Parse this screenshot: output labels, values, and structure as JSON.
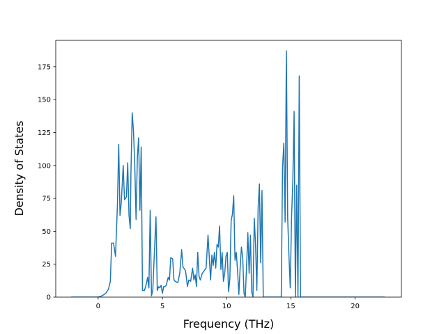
{
  "chart_data": {
    "type": "line",
    "title": "",
    "xlabel": "Frequency (THz)",
    "ylabel": "Density of States",
    "xlim": [
      -3.3,
      23.6
    ],
    "ylim": [
      0,
      195
    ],
    "xticks": [
      0,
      5,
      10,
      15,
      20
    ],
    "yticks": [
      0,
      25,
      50,
      75,
      100,
      125,
      150,
      175
    ],
    "grid": false,
    "legend": "none",
    "series": [
      {
        "color": "#1f77b4",
        "points": [
          [
            -2.1,
            0
          ],
          [
            -1.0,
            0
          ],
          [
            0.0,
            0
          ],
          [
            0.3,
            1
          ],
          [
            0.6,
            3
          ],
          [
            0.8,
            6
          ],
          [
            0.95,
            12
          ],
          [
            1.05,
            41
          ],
          [
            1.2,
            41
          ],
          [
            1.35,
            31
          ],
          [
            1.5,
            70
          ],
          [
            1.6,
            116
          ],
          [
            1.7,
            62
          ],
          [
            1.8,
            72
          ],
          [
            1.95,
            100
          ],
          [
            2.05,
            74
          ],
          [
            2.2,
            76
          ],
          [
            2.3,
            102
          ],
          [
            2.4,
            62
          ],
          [
            2.5,
            52
          ],
          [
            2.55,
            93
          ],
          [
            2.65,
            140
          ],
          [
            2.75,
            126
          ],
          [
            2.85,
            100
          ],
          [
            2.95,
            59
          ],
          [
            3.05,
            106
          ],
          [
            3.15,
            121
          ],
          [
            3.25,
            66
          ],
          [
            3.35,
            114
          ],
          [
            3.45,
            5
          ],
          [
            3.6,
            5
          ],
          [
            3.75,
            10
          ],
          [
            3.85,
            15
          ],
          [
            3.95,
            7
          ],
          [
            4.05,
            66
          ],
          [
            4.15,
            1
          ],
          [
            4.25,
            5
          ],
          [
            4.35,
            28
          ],
          [
            4.5,
            61
          ],
          [
            4.6,
            5
          ],
          [
            4.7,
            8
          ],
          [
            4.8,
            7
          ],
          [
            4.9,
            9
          ],
          [
            5.0,
            3
          ],
          [
            5.1,
            8
          ],
          [
            5.2,
            8
          ],
          [
            5.3,
            9
          ],
          [
            5.45,
            15
          ],
          [
            5.55,
            13
          ],
          [
            5.65,
            30
          ],
          [
            5.8,
            29
          ],
          [
            5.9,
            13
          ],
          [
            6.0,
            12
          ],
          [
            6.2,
            11
          ],
          [
            6.35,
            18
          ],
          [
            6.5,
            36
          ],
          [
            6.6,
            23
          ],
          [
            6.8,
            20
          ],
          [
            6.95,
            8
          ],
          [
            7.05,
            13
          ],
          [
            7.2,
            12
          ],
          [
            7.35,
            22
          ],
          [
            7.45,
            13
          ],
          [
            7.55,
            17
          ],
          [
            7.65,
            8
          ],
          [
            7.75,
            34
          ],
          [
            7.85,
            16
          ],
          [
            7.95,
            13
          ],
          [
            8.1,
            18
          ],
          [
            8.25,
            20
          ],
          [
            8.4,
            22
          ],
          [
            8.55,
            47
          ],
          [
            8.65,
            30
          ],
          [
            8.75,
            13
          ],
          [
            8.85,
            32
          ],
          [
            8.95,
            24
          ],
          [
            9.05,
            34
          ],
          [
            9.15,
            22
          ],
          [
            9.25,
            40
          ],
          [
            9.35,
            38
          ],
          [
            9.45,
            54
          ],
          [
            9.55,
            21
          ],
          [
            9.65,
            34
          ],
          [
            9.75,
            12
          ],
          [
            9.85,
            18
          ],
          [
            9.95,
            31
          ],
          [
            10.05,
            34
          ],
          [
            10.15,
            4
          ],
          [
            10.25,
            14
          ],
          [
            10.35,
            58
          ],
          [
            10.45,
            63
          ],
          [
            10.55,
            77
          ],
          [
            10.65,
            28
          ],
          [
            10.75,
            34
          ],
          [
            10.85,
            20
          ],
          [
            10.95,
            2
          ],
          [
            11.05,
            22
          ],
          [
            11.15,
            38
          ],
          [
            11.25,
            30
          ],
          [
            11.35,
            3
          ],
          [
            11.45,
            0
          ],
          [
            11.55,
            23
          ],
          [
            11.65,
            49
          ],
          [
            11.75,
            18
          ],
          [
            11.85,
            47
          ],
          [
            11.95,
            4
          ],
          [
            12.05,
            0
          ],
          [
            12.15,
            60
          ],
          [
            12.25,
            40
          ],
          [
            12.35,
            5
          ],
          [
            12.45,
            68
          ],
          [
            12.55,
            86
          ],
          [
            12.65,
            26
          ],
          [
            12.75,
            81
          ],
          [
            12.85,
            0
          ],
          [
            13.05,
            0
          ],
          [
            13.25,
            0
          ],
          [
            13.45,
            0
          ],
          [
            13.65,
            0
          ],
          [
            13.85,
            0
          ],
          [
            14.05,
            0
          ],
          [
            14.25,
            0
          ],
          [
            14.35,
            98
          ],
          [
            14.45,
            117
          ],
          [
            14.55,
            57
          ],
          [
            14.65,
            187
          ],
          [
            14.75,
            60
          ],
          [
            14.85,
            31
          ],
          [
            14.95,
            7
          ],
          [
            15.05,
            60
          ],
          [
            15.15,
            88
          ],
          [
            15.25,
            141
          ],
          [
            15.35,
            0
          ],
          [
            15.45,
            85
          ],
          [
            15.55,
            0
          ],
          [
            15.65,
            168
          ],
          [
            15.75,
            0
          ],
          [
            16.0,
            0
          ],
          [
            17.0,
            0
          ],
          [
            18.0,
            0
          ],
          [
            19.0,
            0
          ],
          [
            20.0,
            0
          ],
          [
            21.0,
            0
          ],
          [
            22.3,
            0
          ]
        ]
      }
    ]
  }
}
